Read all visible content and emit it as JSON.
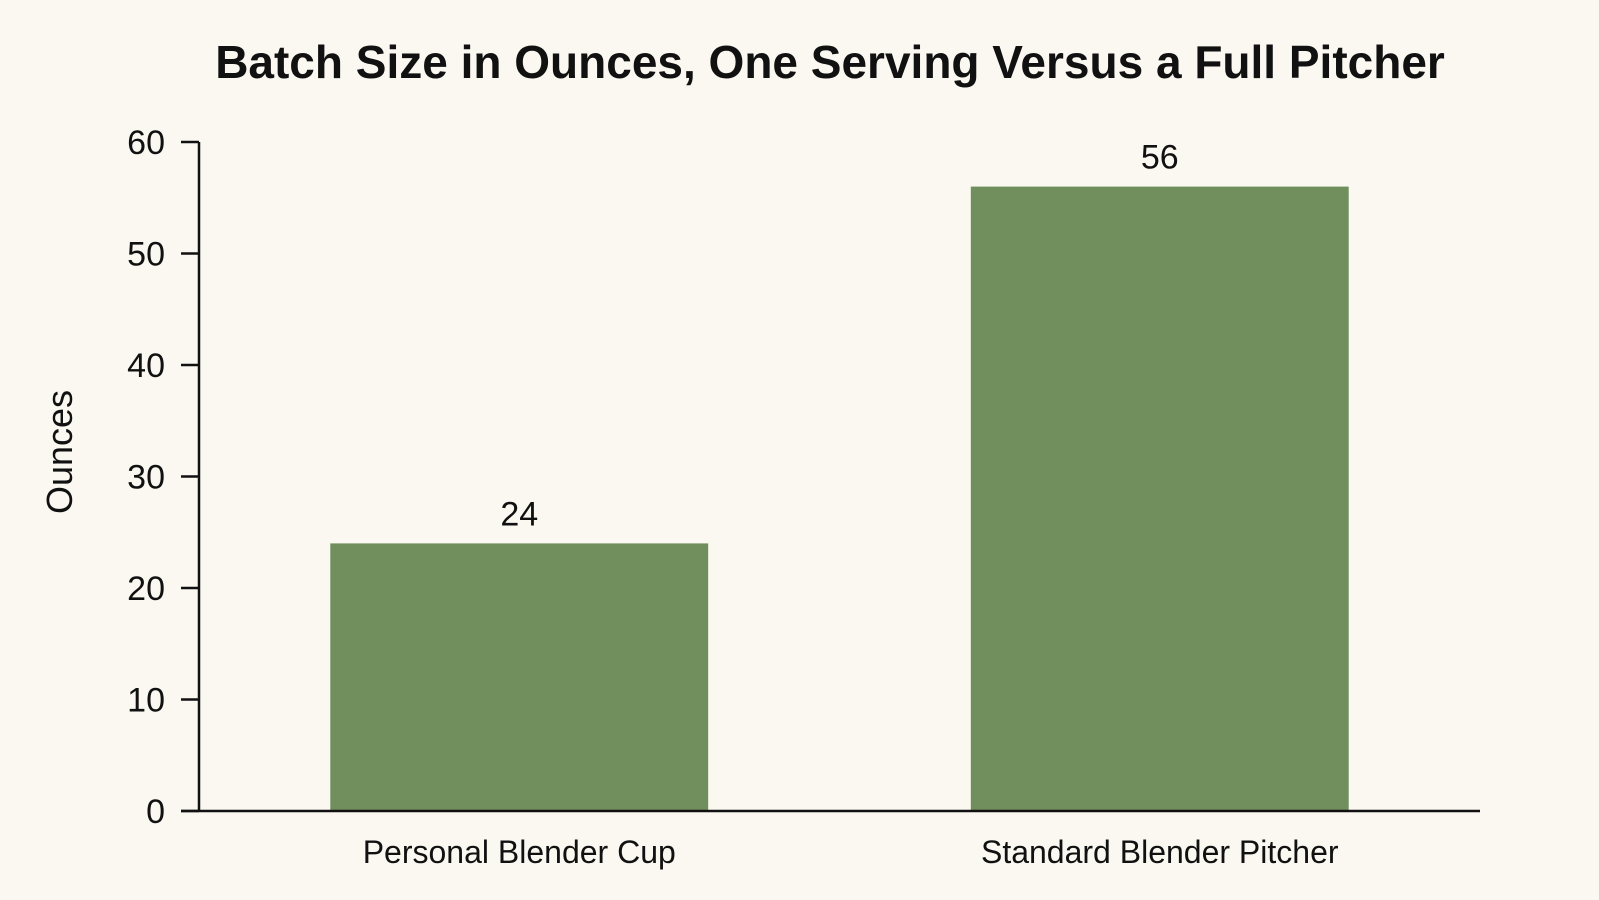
{
  "chart_data": {
    "type": "bar",
    "title": "Batch Size in Ounces, One Serving Versus a Full Pitcher",
    "xlabel": "",
    "ylabel": "Ounces",
    "categories": [
      "Personal Blender Cup",
      "Standard Blender Pitcher"
    ],
    "values": [
      24,
      56
    ],
    "data_labels": [
      "24",
      "56"
    ],
    "ylim": [
      0,
      60
    ],
    "yticks": [
      0,
      10,
      20,
      30,
      40,
      50,
      60
    ],
    "grid": false,
    "legend": "none",
    "bar_color": "#718f5c",
    "axis_color": "#111111",
    "background_color": "#faf8f0"
  }
}
